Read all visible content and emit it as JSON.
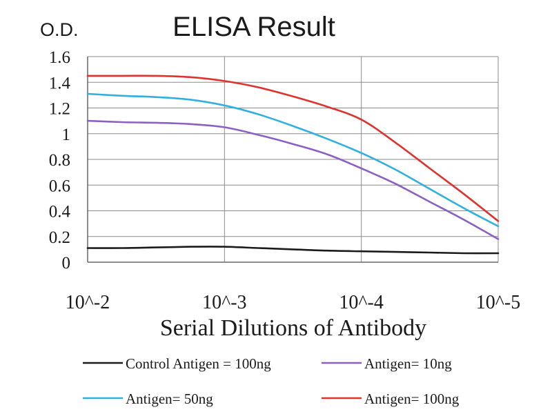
{
  "chart_data": {
    "type": "line",
    "title": "ELISA Result",
    "ylabel": "O.D.",
    "xlabel": "Serial Dilutions of Antibody",
    "categories": [
      "10^-2",
      "10^-3",
      "10^-4",
      "10^-5"
    ],
    "yticks": [
      "0",
      "0.2",
      "0.4",
      "0.6",
      "0.8",
      "1",
      "1.2",
      "1.4",
      "1.6"
    ],
    "ylim": [
      0,
      1.6
    ],
    "grid": true,
    "legend_position": "bottom",
    "series": [
      {
        "name": "Control Antigen = 100ng",
        "color": "#1a1a1a",
        "x": [
          0,
          0.25,
          0.5,
          0.75,
          1,
          1.25,
          1.5,
          1.75,
          2,
          2.25,
          2.5,
          2.75,
          3
        ],
        "values": [
          0.11,
          0.11,
          0.115,
          0.12,
          0.12,
          0.11,
          0.1,
          0.09,
          0.085,
          0.08,
          0.075,
          0.07,
          0.07
        ]
      },
      {
        "name": "Antigen= 10ng",
        "color": "#8b5fc4",
        "x": [
          0,
          0.25,
          0.5,
          0.75,
          1,
          1.25,
          1.5,
          1.75,
          2,
          2.25,
          2.5,
          2.75,
          3
        ],
        "values": [
          1.1,
          1.09,
          1.085,
          1.075,
          1.05,
          0.99,
          0.92,
          0.84,
          0.73,
          0.61,
          0.47,
          0.33,
          0.18
        ]
      },
      {
        "name": "Antigen= 50ng",
        "color": "#2fb0e0",
        "x": [
          0,
          0.25,
          0.5,
          0.75,
          1,
          1.25,
          1.5,
          1.75,
          2,
          2.25,
          2.5,
          2.75,
          3
        ],
        "values": [
          1.31,
          1.295,
          1.285,
          1.265,
          1.22,
          1.15,
          1.06,
          0.96,
          0.85,
          0.72,
          0.57,
          0.42,
          0.28
        ]
      },
      {
        "name": "Antigen= 100ng",
        "color": "#e0322d",
        "x": [
          0,
          0.25,
          0.5,
          0.75,
          1,
          1.25,
          1.5,
          1.75,
          2,
          2.25,
          2.5,
          2.75,
          3
        ],
        "values": [
          1.45,
          1.45,
          1.45,
          1.44,
          1.41,
          1.36,
          1.29,
          1.21,
          1.11,
          0.93,
          0.73,
          0.53,
          0.32
        ]
      }
    ]
  }
}
